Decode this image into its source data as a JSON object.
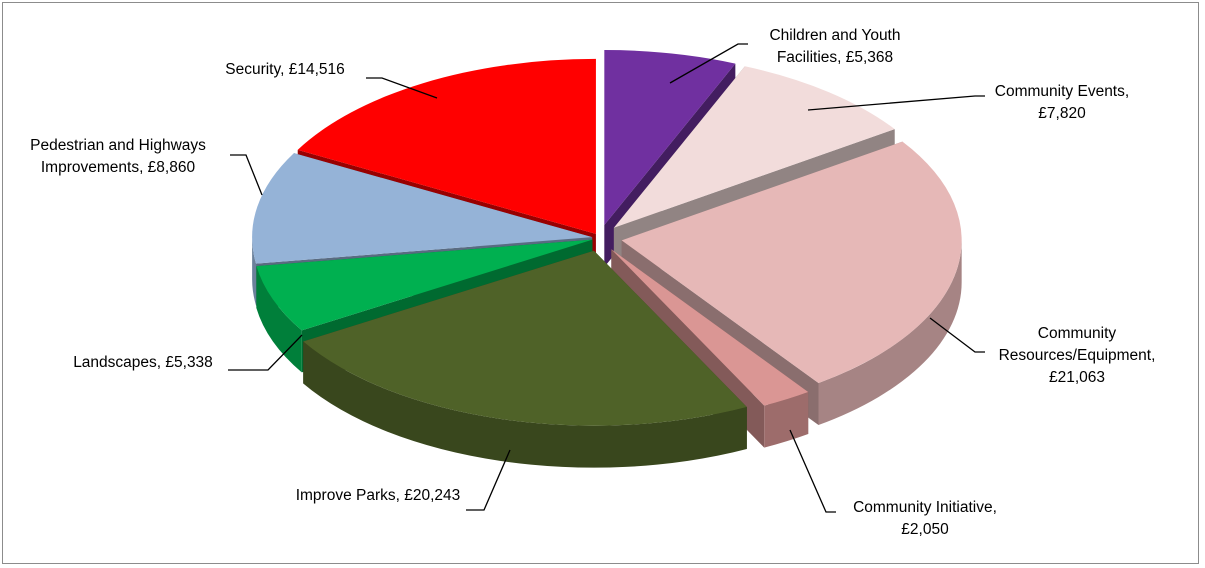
{
  "chart_data": {
    "type": "pie",
    "title": "",
    "style": "3d-exploded",
    "slices": [
      {
        "name": "Children and Youth Facilities",
        "value": 5368,
        "color": "#7030a0",
        "label_lines": [
          "Children and Youth",
          "Facilities, £5,368"
        ]
      },
      {
        "name": "Community Events",
        "value": 7820,
        "color": "#f2dcdb",
        "label_lines": [
          "Community Events,",
          "£7,820"
        ]
      },
      {
        "name": "Community Resources/Equipment",
        "value": 21063,
        "color": "#e6b8b7",
        "label_lines": [
          "Community",
          "Resources/Equipment,",
          "£21,063"
        ]
      },
      {
        "name": "Community Initiative",
        "value": 2050,
        "color": "#da9694",
        "label_lines": [
          "Community Initiative,",
          "£2,050"
        ]
      },
      {
        "name": "Improve Parks",
        "value": 20243,
        "color": "#4f6228",
        "label_lines": [
          "Improve Parks, £20,243"
        ]
      },
      {
        "name": "Landscapes",
        "value": 5338,
        "color": "#00b050",
        "label_lines": [
          "Landscapes, £5,338"
        ]
      },
      {
        "name": "Pedestrian and Highways Improvements",
        "value": 8860,
        "color": "#95b3d7",
        "label_lines": [
          "Pedestrian and Highways",
          "Improvements, £8,860"
        ]
      },
      {
        "name": "Security",
        "value": 14516,
        "color": "#ff0000",
        "label_lines": [
          "Security, £14,516"
        ]
      }
    ]
  }
}
